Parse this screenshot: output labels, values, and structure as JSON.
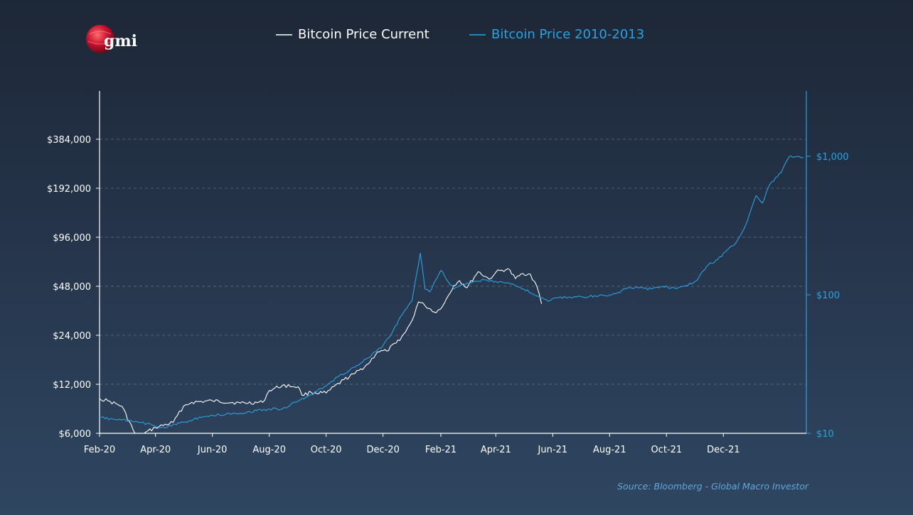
{
  "logo": {
    "text": "gmi"
  },
  "source": "Source: Bloomberg - Global Macro Investor",
  "colors": {
    "current": "#ffffff",
    "historical": "#29a3e0",
    "left_axis": "#ffffff",
    "right_axis": "#29a3e0",
    "grid": "#6b7f99"
  },
  "chart_data": {
    "type": "line",
    "title": "",
    "legend_position": "top-center",
    "grid": true,
    "x_ticks": [
      "Feb-20",
      "Apr-20",
      "Jun-20",
      "Aug-20",
      "Oct-20",
      "Dec-20",
      "Feb-21",
      "Apr-21",
      "Jun-21",
      "Aug-21",
      "Oct-21",
      "Dec-21"
    ],
    "x_range": [
      "2020-02-01",
      "2022-02-28"
    ],
    "y_left": {
      "scale": "log",
      "range": [
        6000,
        600000
      ],
      "ticks": [
        6000,
        12000,
        24000,
        48000,
        96000,
        192000,
        384000
      ],
      "tick_labels": [
        "$6,000",
        "$12,000",
        "$24,000",
        "$48,000",
        "$96,000",
        "$192,000",
        "$384,000"
      ]
    },
    "y_right": {
      "scale": "log",
      "range": [
        10,
        2000
      ],
      "ticks": [
        10,
        100,
        1000
      ],
      "tick_labels": [
        "$10",
        "$100",
        "$1,000"
      ]
    },
    "series": [
      {
        "name": "Bitcoin Price Current",
        "axis": "left",
        "x": [
          "2020-02-01",
          "2020-02-10",
          "2020-02-25",
          "2020-03-08",
          "2020-03-12",
          "2020-03-20",
          "2020-04-01",
          "2020-04-20",
          "2020-05-01",
          "2020-05-10",
          "2020-06-01",
          "2020-07-01",
          "2020-07-25",
          "2020-08-01",
          "2020-08-15",
          "2020-09-01",
          "2020-09-05",
          "2020-09-15",
          "2020-10-01",
          "2020-10-20",
          "2020-11-01",
          "2020-11-15",
          "2020-11-25",
          "2020-12-05",
          "2020-12-15",
          "2020-12-25",
          "2021-01-01",
          "2021-01-08",
          "2021-01-15",
          "2021-01-27",
          "2021-02-05",
          "2021-02-15",
          "2021-02-21",
          "2021-03-01",
          "2021-03-13",
          "2021-03-25",
          "2021-04-01",
          "2021-04-14",
          "2021-04-22",
          "2021-04-30",
          "2021-05-08",
          "2021-05-15",
          "2021-05-20"
        ],
        "values": [
          9800,
          9500,
          8800,
          6300,
          5200,
          6000,
          6500,
          7000,
          8800,
          9300,
          9500,
          9200,
          9300,
          11000,
          11800,
          11600,
          10300,
          10700,
          10600,
          12800,
          14000,
          16000,
          19000,
          19200,
          21500,
          25000,
          29500,
          38500,
          36500,
          33000,
          38000,
          48500,
          52000,
          47000,
          59000,
          53000,
          58500,
          61500,
          53500,
          57500,
          57000,
          48000,
          37500
        ]
      },
      {
        "name": "Bitcoin Price 2010-2013",
        "axis": "right",
        "x": [
          "2020-02-01",
          "2020-03-15",
          "2020-04-10",
          "2020-05-01",
          "2020-05-20",
          "2020-06-01",
          "2020-07-01",
          "2020-08-01",
          "2020-08-15",
          "2020-09-15",
          "2020-10-01",
          "2020-10-15",
          "2020-11-01",
          "2020-11-15",
          "2020-12-01",
          "2020-12-10",
          "2020-12-20",
          "2021-01-01",
          "2021-01-10",
          "2021-01-15",
          "2021-01-20",
          "2021-02-01",
          "2021-02-15",
          "2021-03-01",
          "2021-03-20",
          "2021-04-15",
          "2021-05-01",
          "2021-05-15",
          "2021-05-27",
          "2021-06-05",
          "2021-06-20",
          "2021-07-20",
          "2021-08-01",
          "2021-08-10",
          "2021-08-20",
          "2021-09-01",
          "2021-09-15",
          "2021-10-01",
          "2021-10-05",
          "2021-10-20",
          "2021-11-01",
          "2021-11-15",
          "2021-11-25",
          "2021-12-05",
          "2021-12-15",
          "2021-12-25",
          "2022-01-05",
          "2022-01-12",
          "2022-01-20",
          "2022-02-01",
          "2022-02-10",
          "2022-02-20",
          "2022-02-25"
        ],
        "values": [
          13,
          12,
          11,
          12,
          13,
          13.5,
          14,
          15,
          15,
          19,
          22,
          26,
          30,
          35,
          43,
          52,
          70,
          90,
          200,
          110,
          105,
          150,
          110,
          122,
          128,
          122,
          110,
          98,
          90,
          95,
          96,
          98,
          100,
          104,
          112,
          112,
          110,
          116,
          111,
          115,
          125,
          165,
          180,
          210,
          240,
          320,
          520,
          460,
          630,
          760,
          1000,
          1000,
          980
        ]
      }
    ]
  }
}
